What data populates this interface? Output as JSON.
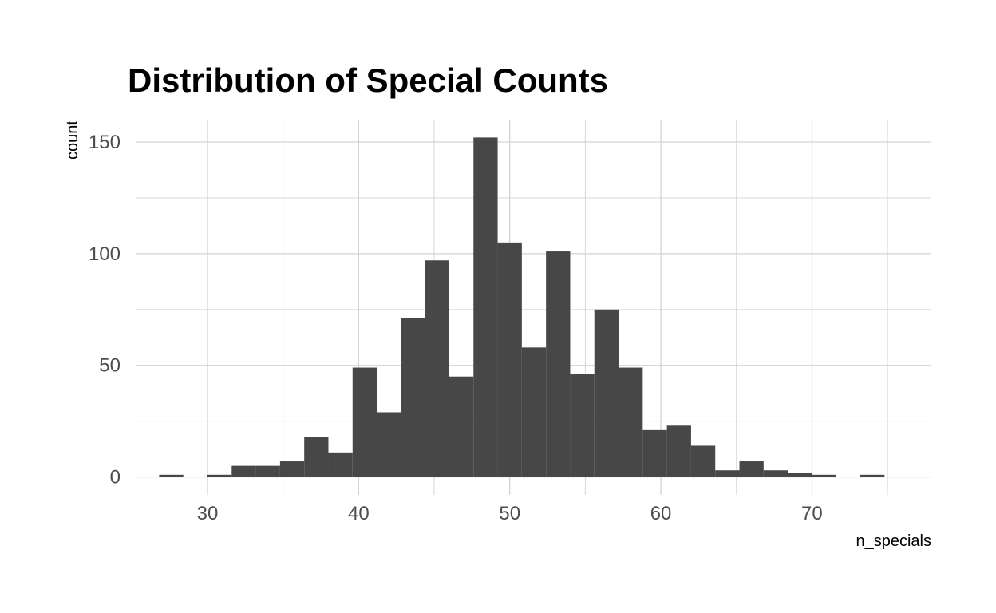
{
  "chart_data": {
    "type": "bar",
    "title": "Distribution of Special Counts",
    "xlabel": "n_specials",
    "ylabel": "count",
    "bin_width": 1.6,
    "bins": [
      {
        "x0": 26.8,
        "x1": 28.4,
        "count": 1
      },
      {
        "x0": 28.4,
        "x1": 30.0,
        "count": 0
      },
      {
        "x0": 30.0,
        "x1": 31.6,
        "count": 1
      },
      {
        "x0": 31.6,
        "x1": 33.2,
        "count": 5
      },
      {
        "x0": 33.2,
        "x1": 34.8,
        "count": 5
      },
      {
        "x0": 34.8,
        "x1": 36.4,
        "count": 7
      },
      {
        "x0": 36.4,
        "x1": 38.0,
        "count": 18
      },
      {
        "x0": 38.0,
        "x1": 39.6,
        "count": 11
      },
      {
        "x0": 39.6,
        "x1": 41.2,
        "count": 49
      },
      {
        "x0": 41.2,
        "x1": 42.8,
        "count": 29
      },
      {
        "x0": 42.8,
        "x1": 44.4,
        "count": 71
      },
      {
        "x0": 44.4,
        "x1": 46.0,
        "count": 97
      },
      {
        "x0": 46.0,
        "x1": 47.6,
        "count": 45
      },
      {
        "x0": 47.6,
        "x1": 49.2,
        "count": 152
      },
      {
        "x0": 49.2,
        "x1": 50.8,
        "count": 105
      },
      {
        "x0": 50.8,
        "x1": 52.4,
        "count": 58
      },
      {
        "x0": 52.4,
        "x1": 54.0,
        "count": 101
      },
      {
        "x0": 54.0,
        "x1": 55.6,
        "count": 46
      },
      {
        "x0": 55.6,
        "x1": 57.2,
        "count": 75
      },
      {
        "x0": 57.2,
        "x1": 58.8,
        "count": 49
      },
      {
        "x0": 58.8,
        "x1": 60.4,
        "count": 21
      },
      {
        "x0": 60.4,
        "x1": 62.0,
        "count": 23
      },
      {
        "x0": 62.0,
        "x1": 63.6,
        "count": 14
      },
      {
        "x0": 63.6,
        "x1": 65.2,
        "count": 3
      },
      {
        "x0": 65.2,
        "x1": 66.8,
        "count": 7
      },
      {
        "x0": 66.8,
        "x1": 68.4,
        "count": 3
      },
      {
        "x0": 68.4,
        "x1": 70.0,
        "count": 2
      },
      {
        "x0": 70.0,
        "x1": 71.6,
        "count": 1
      },
      {
        "x0": 71.6,
        "x1": 73.2,
        "count": 0
      },
      {
        "x0": 73.2,
        "x1": 74.8,
        "count": 1
      }
    ],
    "x_ticks": [
      30,
      40,
      50,
      60,
      70
    ],
    "y_ticks": [
      0,
      50,
      100,
      150
    ],
    "xlim": [
      25.3,
      77.9
    ],
    "ylim": [
      -8,
      160
    ],
    "grid": true,
    "legend": "none",
    "bar_color": "#474747",
    "grid_color": "#d3d3d3"
  }
}
